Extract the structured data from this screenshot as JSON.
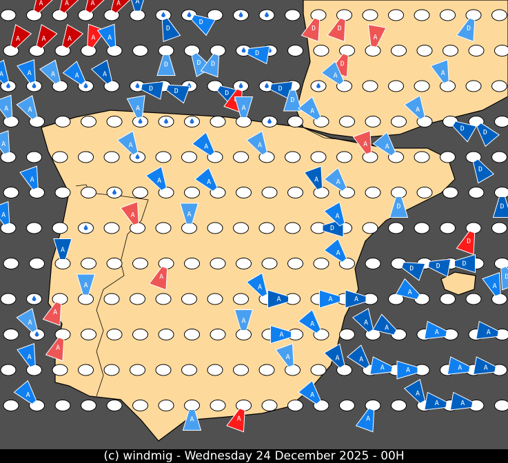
{
  "caption": "(c) windmig - Wednesday 24 December 2025 - 00H",
  "colors": {
    "sea": "#505050",
    "land": "#fdd99b",
    "station": "#ffffff",
    "red_dark": "#cc0000",
    "red": "#ff1a1a",
    "pink": "#ee5555",
    "blue_dark": "#0060c0",
    "blue": "#1080f0",
    "blue_light": "#4aa0f0"
  },
  "legend_labels": {
    "A": "A",
    "D": "D"
  },
  "rain_stations": [
    [
      0,
      6
    ],
    [
      0,
      7
    ],
    [
      0,
      9
    ],
    [
      0,
      10
    ],
    [
      1,
      9
    ],
    [
      1,
      10
    ],
    [
      2,
      0
    ],
    [
      2,
      1
    ],
    [
      2,
      3
    ],
    [
      2,
      5
    ],
    [
      2,
      7
    ],
    [
      2,
      9
    ],
    [
      2,
      10
    ],
    [
      2,
      12
    ],
    [
      3,
      5
    ],
    [
      3,
      6
    ],
    [
      3,
      7
    ],
    [
      3,
      10
    ],
    [
      4,
      5
    ],
    [
      5,
      4
    ],
    [
      6,
      3
    ],
    [
      8,
      1
    ],
    [
      9,
      1
    ]
  ],
  "markers": [
    {
      "r": 0,
      "c": 1,
      "label": "A",
      "color": "red_dark",
      "rot": 30
    },
    {
      "r": 0,
      "c": 2,
      "label": "A",
      "color": "red_dark",
      "rot": 30
    },
    {
      "r": 0,
      "c": 3,
      "label": "A",
      "color": "red_dark",
      "rot": 30
    },
    {
      "r": 0,
      "c": 4,
      "label": "A",
      "color": "red_dark",
      "rot": 30
    },
    {
      "r": 0,
      "c": 5,
      "label": "A",
      "color": "blue_dark",
      "rot": 0
    },
    {
      "r": 0,
      "c": 6,
      "label": "D",
      "color": "blue_dark",
      "rot": 160
    },
    {
      "r": 0,
      "c": 7,
      "label": "D",
      "color": "blue",
      "rot": 120
    },
    {
      "r": 0,
      "c": 12,
      "label": "D",
      "color": "pink",
      "rot": 200
    },
    {
      "r": 0,
      "c": 13,
      "label": "D",
      "color": "pink",
      "rot": 200
    },
    {
      "r": 0,
      "c": 18,
      "label": "D",
      "color": "blue_light",
      "rot": 200
    },
    {
      "r": 1,
      "c": 0,
      "label": "A",
      "color": "red_dark",
      "rot": 30
    },
    {
      "r": 1,
      "c": 1,
      "label": "A",
      "color": "red_dark",
      "rot": 30
    },
    {
      "r": 1,
      "c": 2,
      "label": "A",
      "color": "red_dark",
      "rot": 30
    },
    {
      "r": 1,
      "c": 3,
      "label": "A",
      "color": "red",
      "rot": 20
    },
    {
      "r": 1,
      "c": 4,
      "label": "A",
      "color": "blue",
      "rot": -20
    },
    {
      "r": 1,
      "c": 6,
      "label": "D",
      "color": "blue_light",
      "rot": 180
    },
    {
      "r": 1,
      "c": 7,
      "label": "D",
      "color": "blue_light",
      "rot": 150
    },
    {
      "r": 1,
      "c": 8,
      "label": "D",
      "color": "blue_light",
      "rot": 200
    },
    {
      "r": 1,
      "c": 9,
      "label": "D",
      "color": "blue",
      "rot": 100
    },
    {
      "r": 1,
      "c": 13,
      "label": "D",
      "color": "pink",
      "rot": 200
    },
    {
      "r": 1,
      "c": 14,
      "label": "A",
      "color": "pink",
      "rot": 10
    },
    {
      "r": 2,
      "c": 0,
      "label": "A",
      "color": "blue",
      "rot": -30
    },
    {
      "r": 2,
      "c": 1,
      "label": "A",
      "color": "blue",
      "rot": -20
    },
    {
      "r": 2,
      "c": 2,
      "label": "A",
      "color": "blue_light",
      "rot": -30
    },
    {
      "r": 2,
      "c": 3,
      "label": "A",
      "color": "blue",
      "rot": -40
    },
    {
      "r": 2,
      "c": 4,
      "label": "A",
      "color": "blue_dark",
      "rot": -30
    },
    {
      "r": 2,
      "c": 5,
      "label": "D",
      "color": "blue_dark",
      "rot": 100
    },
    {
      "r": 2,
      "c": 6,
      "label": "D",
      "color": "blue_dark",
      "rot": 110
    },
    {
      "r": 2,
      "c": 8,
      "label": "D",
      "color": "blue_dark",
      "rot": 120
    },
    {
      "r": 2,
      "c": 9,
      "label": "D",
      "color": "red",
      "rot": 200
    },
    {
      "r": 2,
      "c": 10,
      "label": "D",
      "color": "blue_dark",
      "rot": 100
    },
    {
      "r": 2,
      "c": 11,
      "label": "D",
      "color": "blue_light",
      "rot": 180
    },
    {
      "r": 2,
      "c": 13,
      "label": "A",
      "color": "blue_light",
      "rot": -40
    },
    {
      "r": 2,
      "c": 17,
      "label": "A",
      "color": "blue_light",
      "rot": -20
    },
    {
      "r": 3,
      "c": 0,
      "label": "A",
      "color": "blue_light",
      "rot": -20
    },
    {
      "r": 3,
      "c": 1,
      "label": "A",
      "color": "blue_light",
      "rot": -30
    },
    {
      "r": 3,
      "c": 5,
      "label": "A",
      "color": "blue_light",
      "rot": -10
    },
    {
      "r": 3,
      "c": 9,
      "label": "A",
      "color": "blue_light",
      "rot": 0
    },
    {
      "r": 3,
      "c": 12,
      "label": "A",
      "color": "blue_light",
      "rot": -40
    },
    {
      "r": 3,
      "c": 16,
      "label": "A",
      "color": "blue_light",
      "rot": -30
    },
    {
      "r": 3,
      "c": 17,
      "label": "D",
      "color": "blue_dark",
      "rot": 120
    },
    {
      "r": 3,
      "c": 18,
      "label": "D",
      "color": "blue_dark",
      "rot": 140
    },
    {
      "r": 4,
      "c": 0,
      "label": "A",
      "color": "blue_light",
      "rot": -20
    },
    {
      "r": 4,
      "c": 5,
      "label": "A",
      "color": "blue_light",
      "rot": -30
    },
    {
      "r": 4,
      "c": 8,
      "label": "A",
      "color": "blue",
      "rot": -40
    },
    {
      "r": 4,
      "c": 10,
      "label": "A",
      "color": "blue_light",
      "rot": -30
    },
    {
      "r": 4,
      "c": 14,
      "label": "A",
      "color": "pink",
      "rot": -20
    },
    {
      "r": 4,
      "c": 15,
      "label": "A",
      "color": "blue_light",
      "rot": -40
    },
    {
      "r": 4,
      "c": 18,
      "label": "D",
      "color": "blue_dark",
      "rot": 150
    },
    {
      "r": 5,
      "c": 1,
      "label": "A",
      "color": "blue",
      "rot": -20
    },
    {
      "r": 5,
      "c": 6,
      "label": "A",
      "color": "blue",
      "rot": -30
    },
    {
      "r": 5,
      "c": 8,
      "label": "A",
      "color": "blue",
      "rot": -40
    },
    {
      "r": 5,
      "c": 12,
      "label": "A",
      "color": "blue_dark",
      "rot": -20
    },
    {
      "r": 5,
      "c": 13,
      "label": "A",
      "color": "blue_light",
      "rot": -40
    },
    {
      "r": 5,
      "c": 15,
      "label": "D",
      "color": "blue_light",
      "rot": 180
    },
    {
      "r": 5,
      "c": 19,
      "label": "D",
      "color": "blue_dark",
      "rot": 180
    },
    {
      "r": 6,
      "c": 0,
      "label": "A",
      "color": "blue",
      "rot": -20
    },
    {
      "r": 6,
      "c": 5,
      "label": "A",
      "color": "pink",
      "rot": -20
    },
    {
      "r": 6,
      "c": 7,
      "label": "A",
      "color": "blue_light",
      "rot": 0
    },
    {
      "r": 6,
      "c": 12,
      "label": "D",
      "color": "blue_dark",
      "rot": 90
    },
    {
      "r": 6,
      "c": 13,
      "label": "A",
      "color": "blue",
      "rot": -30
    },
    {
      "r": 6,
      "c": 18,
      "label": "D",
      "color": "red",
      "rot": 200
    },
    {
      "r": 7,
      "c": 2,
      "label": "A",
      "color": "blue_dark",
      "rot": 0
    },
    {
      "r": 7,
      "c": 6,
      "label": "A",
      "color": "pink",
      "rot": 200
    },
    {
      "r": 7,
      "c": 13,
      "label": "A",
      "color": "blue",
      "rot": -40
    },
    {
      "r": 7,
      "c": 15,
      "label": "D",
      "color": "blue_dark",
      "rot": 110
    },
    {
      "r": 7,
      "c": 16,
      "label": "D",
      "color": "blue_dark",
      "rot": 100
    },
    {
      "r": 7,
      "c": 17,
      "label": "D",
      "color": "blue_dark",
      "rot": 90
    },
    {
      "r": 7,
      "c": 19,
      "label": "D",
      "color": "blue_light",
      "rot": 160
    },
    {
      "r": 8,
      "c": 2,
      "label": "A",
      "color": "pink",
      "rot": 200
    },
    {
      "r": 8,
      "c": 3,
      "label": "A",
      "color": "blue_light",
      "rot": 0
    },
    {
      "r": 8,
      "c": 10,
      "label": "A",
      "color": "blue",
      "rot": -30
    },
    {
      "r": 8,
      "c": 11,
      "label": "A",
      "color": "blue_dark",
      "rot": -90
    },
    {
      "r": 8,
      "c": 13,
      "label": "A",
      "color": "blue",
      "rot": -90
    },
    {
      "r": 8,
      "c": 14,
      "label": "A",
      "color": "blue_dark",
      "rot": -90
    },
    {
      "r": 8,
      "c": 16,
      "label": "A",
      "color": "blue",
      "rot": -60
    },
    {
      "r": 8,
      "c": 19,
      "label": "A",
      "color": "blue",
      "rot": -20
    },
    {
      "r": 9,
      "c": 1,
      "label": "A",
      "color": "blue_light",
      "rot": -30
    },
    {
      "r": 9,
      "c": 2,
      "label": "A",
      "color": "pink",
      "rot": 200
    },
    {
      "r": 9,
      "c": 9,
      "label": "A",
      "color": "blue_light",
      "rot": 0
    },
    {
      "r": 9,
      "c": 11,
      "label": "A",
      "color": "blue",
      "rot": -90
    },
    {
      "r": 9,
      "c": 12,
      "label": "A",
      "color": "blue",
      "rot": -40
    },
    {
      "r": 9,
      "c": 14,
      "label": "A",
      "color": "blue_dark",
      "rot": -30
    },
    {
      "r": 9,
      "c": 15,
      "label": "A",
      "color": "blue_dark",
      "rot": -60
    },
    {
      "r": 9,
      "c": 17,
      "label": "A",
      "color": "blue",
      "rot": -80
    },
    {
      "r": 9,
      "c": 19,
      "label": "A",
      "color": "blue_dark",
      "rot": -80
    },
    {
      "r": 10,
      "c": 1,
      "label": "A",
      "color": "blue",
      "rot": -20
    },
    {
      "r": 10,
      "c": 11,
      "label": "A",
      "color": "blue_light",
      "rot": -20
    },
    {
      "r": 10,
      "c": 13,
      "label": "A",
      "color": "blue_dark",
      "rot": -30
    },
    {
      "r": 10,
      "c": 14,
      "label": "A",
      "color": "blue_dark",
      "rot": -40
    },
    {
      "r": 10,
      "c": 15,
      "label": "A",
      "color": "blue",
      "rot": -80
    },
    {
      "r": 10,
      "c": 16,
      "label": "A",
      "color": "blue",
      "rot": -90
    },
    {
      "r": 10,
      "c": 18,
      "label": "A",
      "color": "blue",
      "rot": -80
    },
    {
      "r": 10,
      "c": 19,
      "label": "A",
      "color": "blue_dark",
      "rot": -80
    },
    {
      "r": 11,
      "c": 1,
      "label": "A",
      "color": "blue",
      "rot": -40
    },
    {
      "r": 11,
      "c": 7,
      "label": "A",
      "color": "blue_light",
      "rot": 180
    },
    {
      "r": 11,
      "c": 9,
      "label": "A",
      "color": "red",
      "rot": 200
    },
    {
      "r": 11,
      "c": 12,
      "label": "A",
      "color": "blue",
      "rot": -40
    },
    {
      "r": 11,
      "c": 14,
      "label": "A",
      "color": "blue",
      "rot": 200
    },
    {
      "r": 11,
      "c": 16,
      "label": "A",
      "color": "blue_dark",
      "rot": -30
    },
    {
      "r": 11,
      "c": 17,
      "label": "A",
      "color": "blue_dark",
      "rot": -80
    },
    {
      "r": 11,
      "c": 18,
      "label": "A",
      "color": "blue_dark",
      "rot": -80
    }
  ]
}
